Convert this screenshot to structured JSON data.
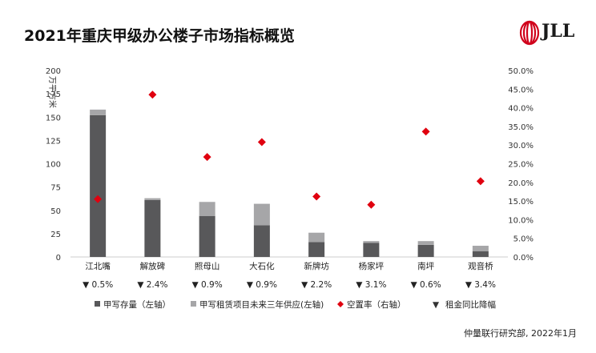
{
  "title": "2021年重庆甲级办公楼子市场指标概览",
  "logo": {
    "text": "JLL",
    "color": "#d0021b"
  },
  "source": "仲量联行研究部, 2022年1月",
  "colors": {
    "stock": "#58585a",
    "supply": "#a6a6a8",
    "vacancy": "#e0000f",
    "axis": "#888888",
    "grid": "#cccccc"
  },
  "chart_data": {
    "type": "bar",
    "categories": [
      "江北嘴",
      "解放碑",
      "照母山",
      "大石化",
      "新牌坊",
      "杨家坪",
      "南坪",
      "观音桥"
    ],
    "series": [
      {
        "name": "甲写存量（左轴）",
        "axis": "left",
        "values": [
          152,
          61,
          44,
          34,
          16,
          15,
          13,
          6
        ]
      },
      {
        "name": "甲写租赁项目未来三年供应(左轴)",
        "axis": "left",
        "stacked": true,
        "values": [
          6,
          2,
          15,
          23,
          10,
          2,
          4,
          6
        ]
      },
      {
        "name": "空置率（右轴）",
        "axis": "right",
        "type": "scatter",
        "values": [
          15.5,
          43.5,
          26.8,
          30.8,
          16.2,
          14.0,
          33.6,
          20.3
        ]
      }
    ],
    "rent_change": {
      "name": "租金同比降幅",
      "symbol": "▼",
      "values": [
        "0.5%",
        "2.4%",
        "0.9%",
        "0.9%",
        "2.2%",
        "3.1%",
        "0.6%",
        "3.4%"
      ]
    },
    "ylabel": "万平方米",
    "ylim": [
      0,
      200
    ],
    "yticks": [
      "0",
      "25",
      "50",
      "75",
      "100",
      "125",
      "150",
      "175",
      "200"
    ],
    "y2lim": [
      0,
      50
    ],
    "y2ticks": [
      "0.0%",
      "5.0%",
      "10.0%",
      "15.0%",
      "20.0%",
      "25.0%",
      "30.0%",
      "35.0%",
      "40.0%",
      "45.0%",
      "50.0%"
    ],
    "legend": [
      "甲写存量（左轴）",
      "甲写租赁项目未来三年供应(左轴)",
      "空置率（右轴）",
      "租金同比降幅"
    ],
    "legend_position": "bottom"
  }
}
